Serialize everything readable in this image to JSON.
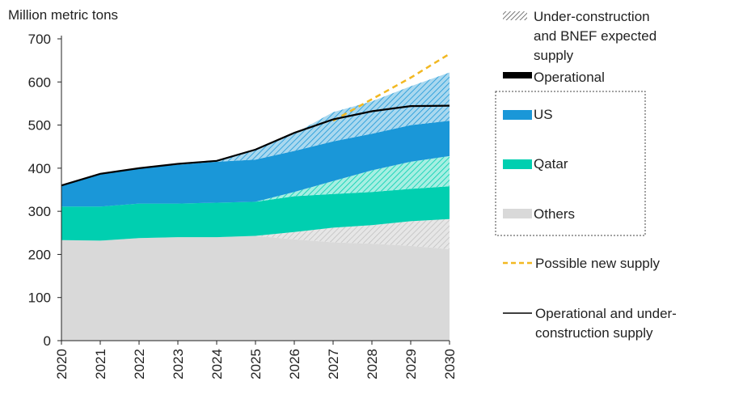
{
  "chart_data": {
    "type": "area",
    "title": "",
    "ylabel": "Million metric tons",
    "xlabel": "",
    "ylim": [
      0,
      700
    ],
    "yticks": [
      0,
      100,
      200,
      300,
      400,
      500,
      600,
      700
    ],
    "categories": [
      "2020",
      "2021",
      "2022",
      "2023",
      "2024",
      "2025",
      "2026",
      "2027",
      "2028",
      "2029",
      "2030"
    ],
    "stack_cumulative_top": {
      "others_operational": [
        233,
        232,
        238,
        240,
        240,
        243,
        235,
        228,
        225,
        220,
        212
      ],
      "others_total": [
        233,
        232,
        238,
        240,
        240,
        243,
        252,
        262,
        268,
        277,
        282
      ],
      "qatar_operational": [
        311,
        311,
        318,
        318,
        320,
        322,
        335,
        340,
        345,
        352,
        358
      ],
      "qatar_total": [
        311,
        311,
        318,
        318,
        320,
        322,
        345,
        370,
        395,
        415,
        428
      ],
      "us_operational": [
        360,
        385,
        400,
        408,
        415,
        420,
        440,
        462,
        480,
        500,
        510
      ],
      "us_total": [
        360,
        385,
        400,
        408,
        418,
        440,
        478,
        510,
        530,
        543,
        545
      ],
      "under_construction_top": [
        360,
        385,
        400,
        408,
        418,
        445,
        480,
        530,
        555,
        590,
        622
      ]
    },
    "series": [
      {
        "name": "Operational and under-construction supply",
        "values": [
          360,
          387,
          400,
          410,
          417,
          443,
          482,
          513,
          532,
          544,
          545
        ]
      },
      {
        "name": "Possible new supply",
        "values": [
          null,
          null,
          null,
          null,
          null,
          null,
          null,
          510,
          560,
          610,
          665
        ]
      }
    ],
    "legend_position": "right",
    "legend": {
      "under_construction": "Under-construction and BNEF expected supply",
      "operational": "Operational",
      "us": "US",
      "qatar": "Qatar",
      "others": "Others",
      "possible_new": "Possible new supply",
      "operational_and_uc": "Operational and under-construction supply"
    },
    "colors": {
      "us": "#1a97d8",
      "us_hatch": "#8fcbe9",
      "qatar": "#00cfb0",
      "qatar_hatch": "#7ee6d4",
      "others": "#d9d9d9",
      "others_hatch": "#b5b5b5",
      "possible_new": "#f2b822",
      "line": "#000000"
    }
  }
}
